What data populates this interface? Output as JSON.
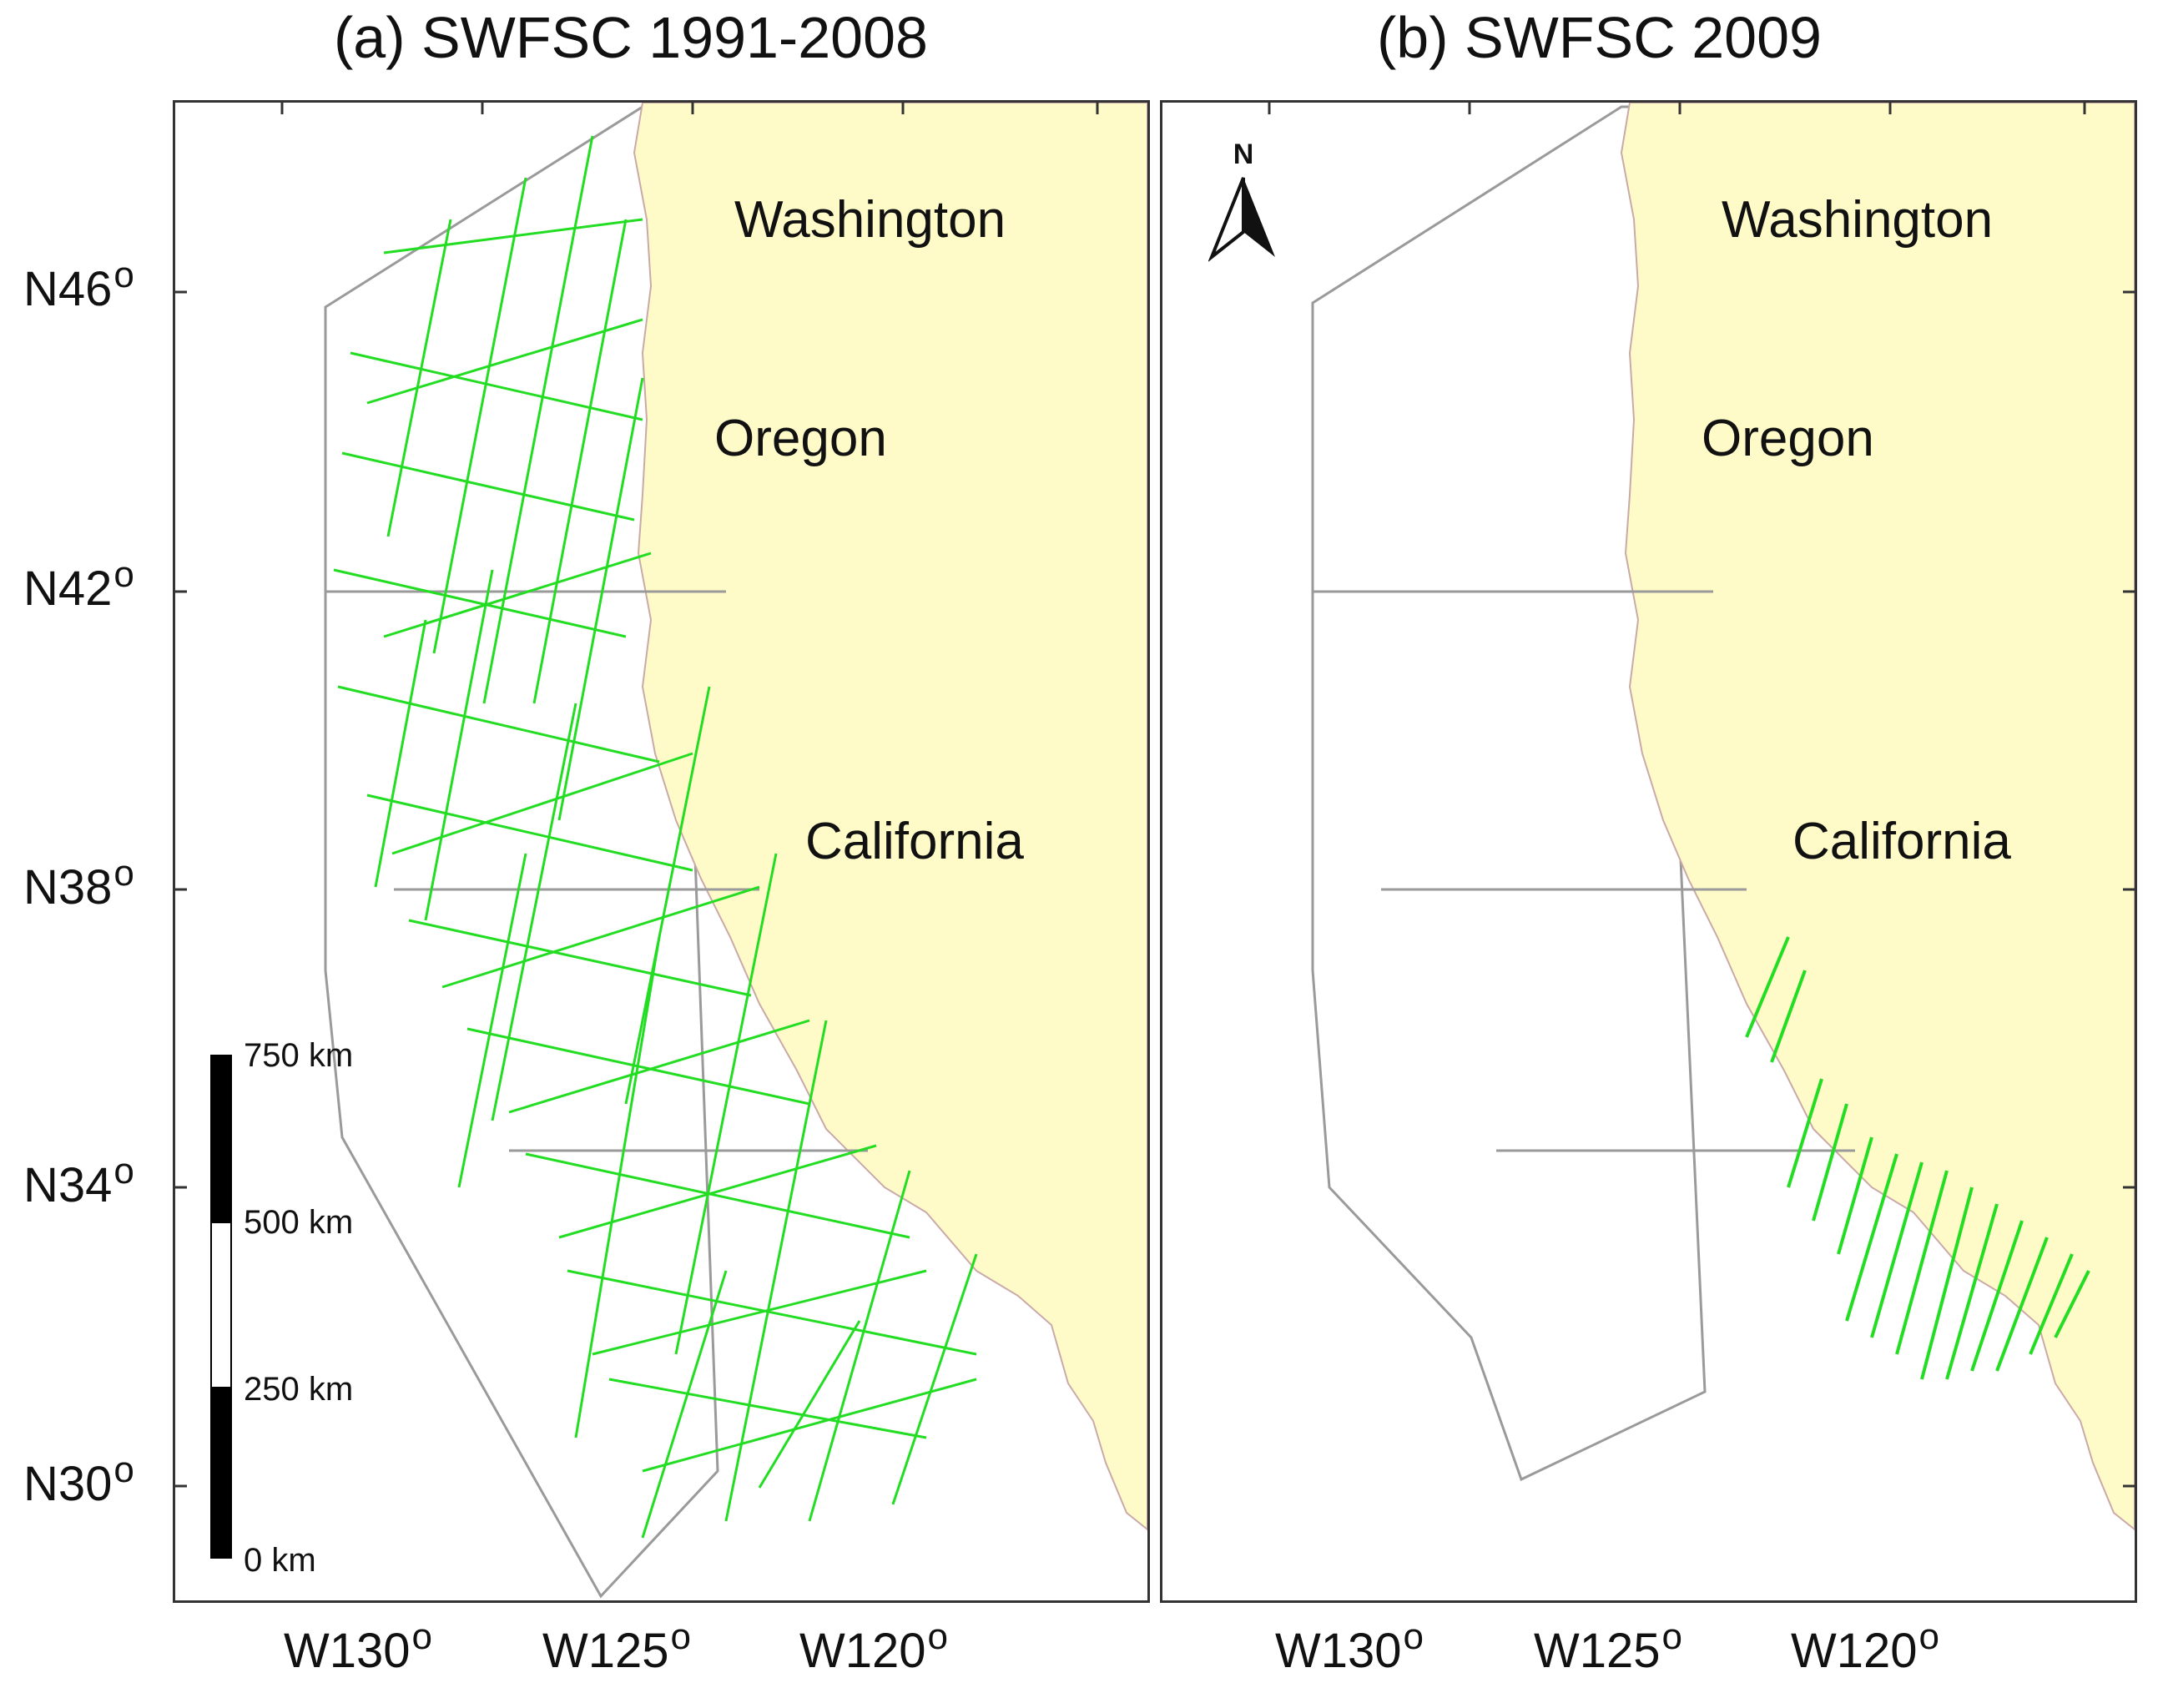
{
  "panels": [
    {
      "title": "(a) SWFSC 1991-2008",
      "states": [
        "Washington",
        "Oregon",
        "California"
      ]
    },
    {
      "title": "(b) SWFSC 2009",
      "states": [
        "Washington",
        "Oregon",
        "California"
      ]
    }
  ],
  "latitude_labels": [
    "N46",
    "N42",
    "N38",
    "N34",
    "N30"
  ],
  "longitude_labels": [
    "W130",
    "W125",
    "W120"
  ],
  "degree_symbol": "o",
  "scale_bar": {
    "labels": [
      "750 km",
      "500 km",
      "250 km",
      "0 km"
    ],
    "segments_km": [
      0,
      250,
      500,
      750
    ]
  },
  "north_arrow_label": "N",
  "colors": {
    "land": "#FFFBC8",
    "track": "#22DD22",
    "stratum_boundary": "#9A9A9A",
    "frame": "#333333",
    "coastline_detail": "#C9A9A9"
  },
  "stratum_boundary_latitudes": [
    42,
    38,
    34.5
  ]
}
